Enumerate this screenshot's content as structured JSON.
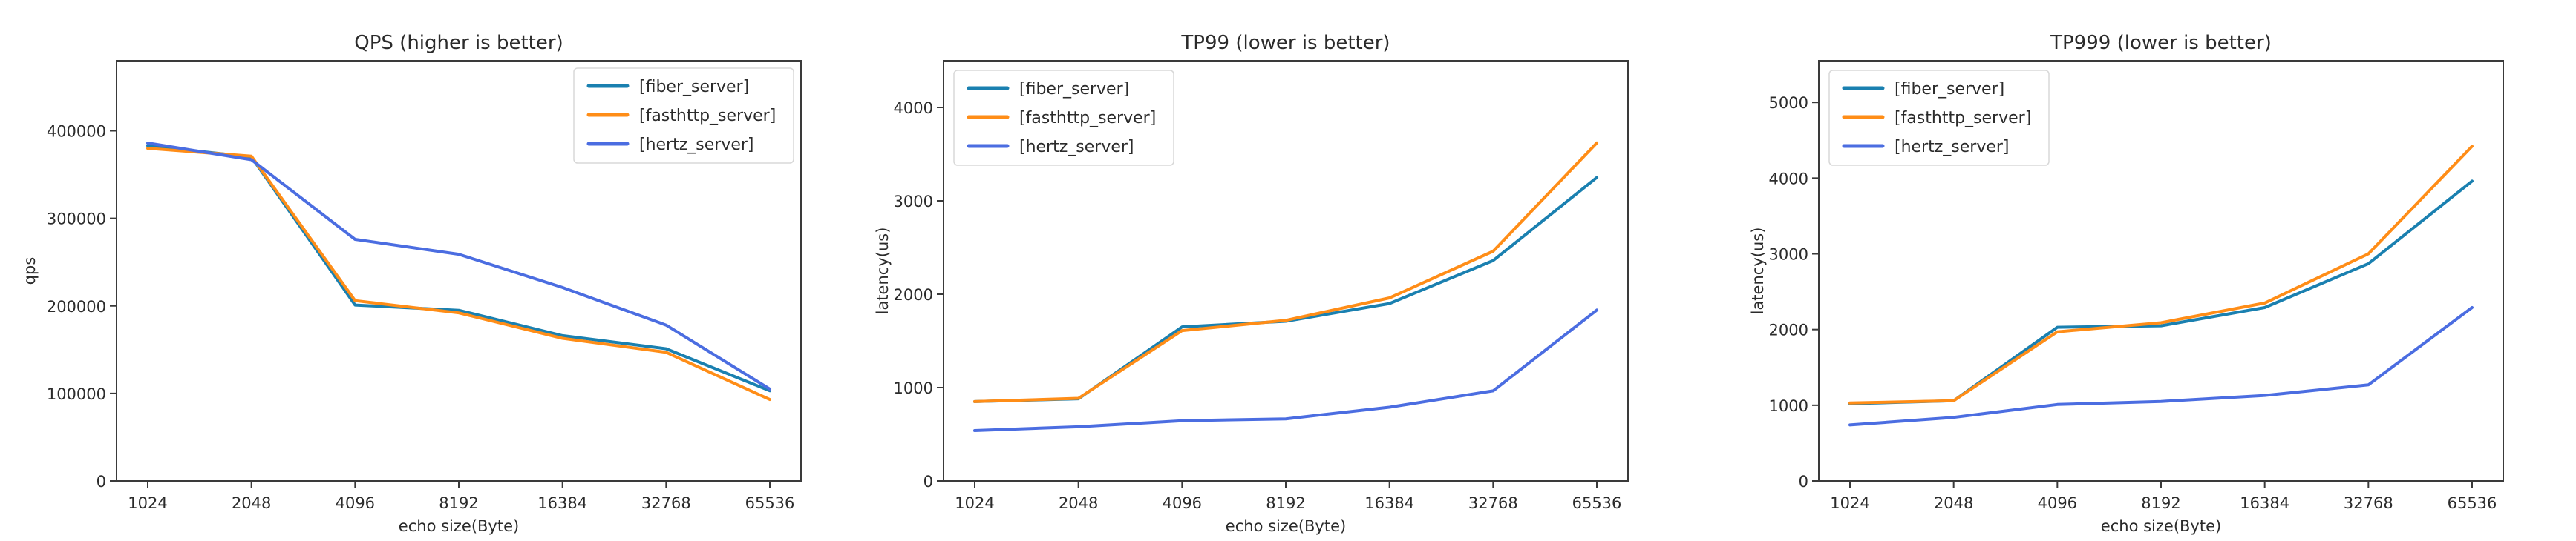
{
  "figure": {
    "background": "#ffffff",
    "text_color": "#2b2b2b",
    "spine_color": "#3a3a3a",
    "legend_border_color": "#d8d8d8",
    "legend_background": "#ffffff"
  },
  "chart_data": [
    {
      "type": "line",
      "title": "QPS (higher is better)",
      "xlabel": "echo size(Byte)",
      "ylabel": "qps",
      "categories": [
        "1024",
        "2048",
        "4096",
        "8192",
        "16384",
        "32768",
        "65536"
      ],
      "series": [
        {
          "name": "[fiber_server]",
          "color": "#1a80b0",
          "values": [
            383000,
            370000,
            201000,
            195000,
            166000,
            151000,
            103000
          ]
        },
        {
          "name": "[fasthttp_server]",
          "color": "#ff8d17",
          "values": [
            380000,
            371000,
            206000,
            192000,
            163000,
            147000,
            93000
          ]
        },
        {
          "name": "[hertz_server]",
          "color": "#4b6de1",
          "values": [
            386000,
            367000,
            276000,
            259000,
            221000,
            178000,
            105000
          ]
        }
      ],
      "ylim": [
        0,
        480000
      ],
      "yticks": [
        0,
        100000,
        200000,
        300000,
        400000
      ],
      "ytick_labels": [
        "0",
        "100000",
        "200000",
        "300000",
        "400000"
      ],
      "grid": false,
      "legend_position": "upper-right"
    },
    {
      "type": "line",
      "title": "TP99 (lower is better)",
      "xlabel": "echo size(Byte)",
      "ylabel": "latency(us)",
      "categories": [
        "1024",
        "2048",
        "4096",
        "8192",
        "16384",
        "32768",
        "65536"
      ],
      "series": [
        {
          "name": "[fiber_server]",
          "color": "#1a80b0",
          "values": [
            850,
            880,
            1650,
            1710,
            1900,
            2360,
            3250
          ]
        },
        {
          "name": "[fasthttp_server]",
          "color": "#ff8d17",
          "values": [
            850,
            885,
            1610,
            1720,
            1960,
            2460,
            3620
          ]
        },
        {
          "name": "[hertz_server]",
          "color": "#4b6de1",
          "values": [
            540,
            580,
            645,
            665,
            790,
            965,
            1830
          ]
        }
      ],
      "ylim": [
        0,
        4500
      ],
      "yticks": [
        0,
        1000,
        2000,
        3000,
        4000
      ],
      "ytick_labels": [
        "0",
        "1000",
        "2000",
        "3000",
        "4000"
      ],
      "grid": false,
      "legend_position": "upper-left"
    },
    {
      "type": "line",
      "title": "TP999 (lower is better)",
      "xlabel": "echo size(Byte)",
      "ylabel": "latency(us)",
      "categories": [
        "1024",
        "2048",
        "4096",
        "8192",
        "16384",
        "32768",
        "65536"
      ],
      "series": [
        {
          "name": "[fiber_server]",
          "color": "#1a80b0",
          "values": [
            1020,
            1060,
            2030,
            2050,
            2290,
            2870,
            3960
          ]
        },
        {
          "name": "[fasthttp_server]",
          "color": "#ff8d17",
          "values": [
            1030,
            1060,
            1970,
            2090,
            2350,
            3000,
            4420
          ]
        },
        {
          "name": "[hertz_server]",
          "color": "#4b6de1",
          "values": [
            740,
            840,
            1010,
            1050,
            1130,
            1270,
            2290
          ]
        }
      ],
      "ylim": [
        0,
        5550
      ],
      "yticks": [
        0,
        1000,
        2000,
        3000,
        4000,
        5000
      ],
      "ytick_labels": [
        "0",
        "1000",
        "2000",
        "3000",
        "4000",
        "5000"
      ],
      "grid": false,
      "legend_position": "upper-left"
    }
  ]
}
